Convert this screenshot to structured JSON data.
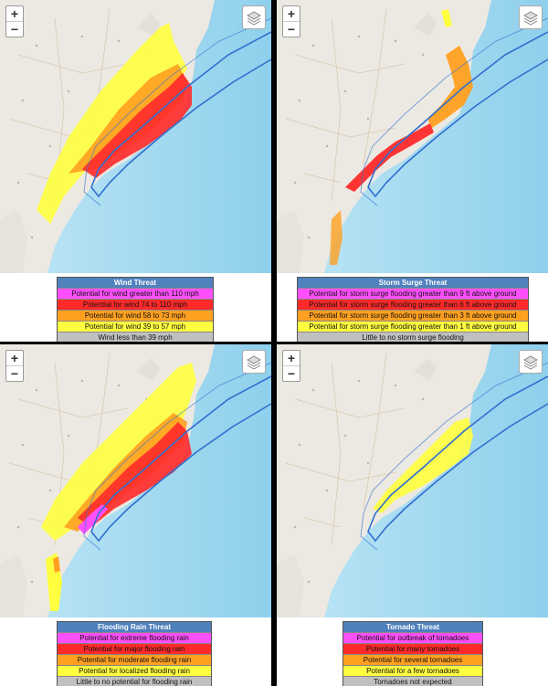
{
  "map_controls": {
    "zoom_in": "+",
    "zoom_out": "−"
  },
  "colors": {
    "extreme": "#ff4fff",
    "high": "#ff2a2a",
    "moderate": "#ffa020",
    "elevated": "#ffff40",
    "none": "#c0c0c0",
    "title_bg": "#4f81bd",
    "ocean": "#a9d9ef",
    "land": "#ece9e2",
    "track": "#2f6fd0"
  },
  "panels": {
    "wind": {
      "title": "Wind Threat",
      "rows": [
        "Potential for wind greater than 110 mph",
        "Potential for wind 74 to 110 mph",
        "Potential for wind 58 to 73 mph",
        "Potential for wind 39 to 57 mph",
        "Wind less than 39 mph"
      ]
    },
    "surge": {
      "title": "Storm Surge Threat",
      "rows": [
        "Potential for storm surge flooding greater than 9 ft above ground",
        "Potential for storm surge flooding greater than 6 ft above ground",
        "Potential for storm surge flooding greater than 3 ft above ground",
        "Potential for storm surge flooding greater than 1 ft above ground",
        "Little to no storm surge flooding"
      ]
    },
    "rain": {
      "title": "Flooding Rain Threat",
      "rows": [
        "Potential for extreme flooding rain",
        "Potential for major flooding rain",
        "Potential for moderate flooding rain",
        "Potential for localized flooding rain",
        "Little to no potential for flooding rain"
      ]
    },
    "tornado": {
      "title": "Tornado Threat",
      "rows": [
        "Potential for outbreak of tornadoes",
        "Potential for many  tornadoes",
        "Potential for several tornadoes",
        "Potential for a few tornadoes",
        "Tornadoes not expected"
      ]
    }
  }
}
